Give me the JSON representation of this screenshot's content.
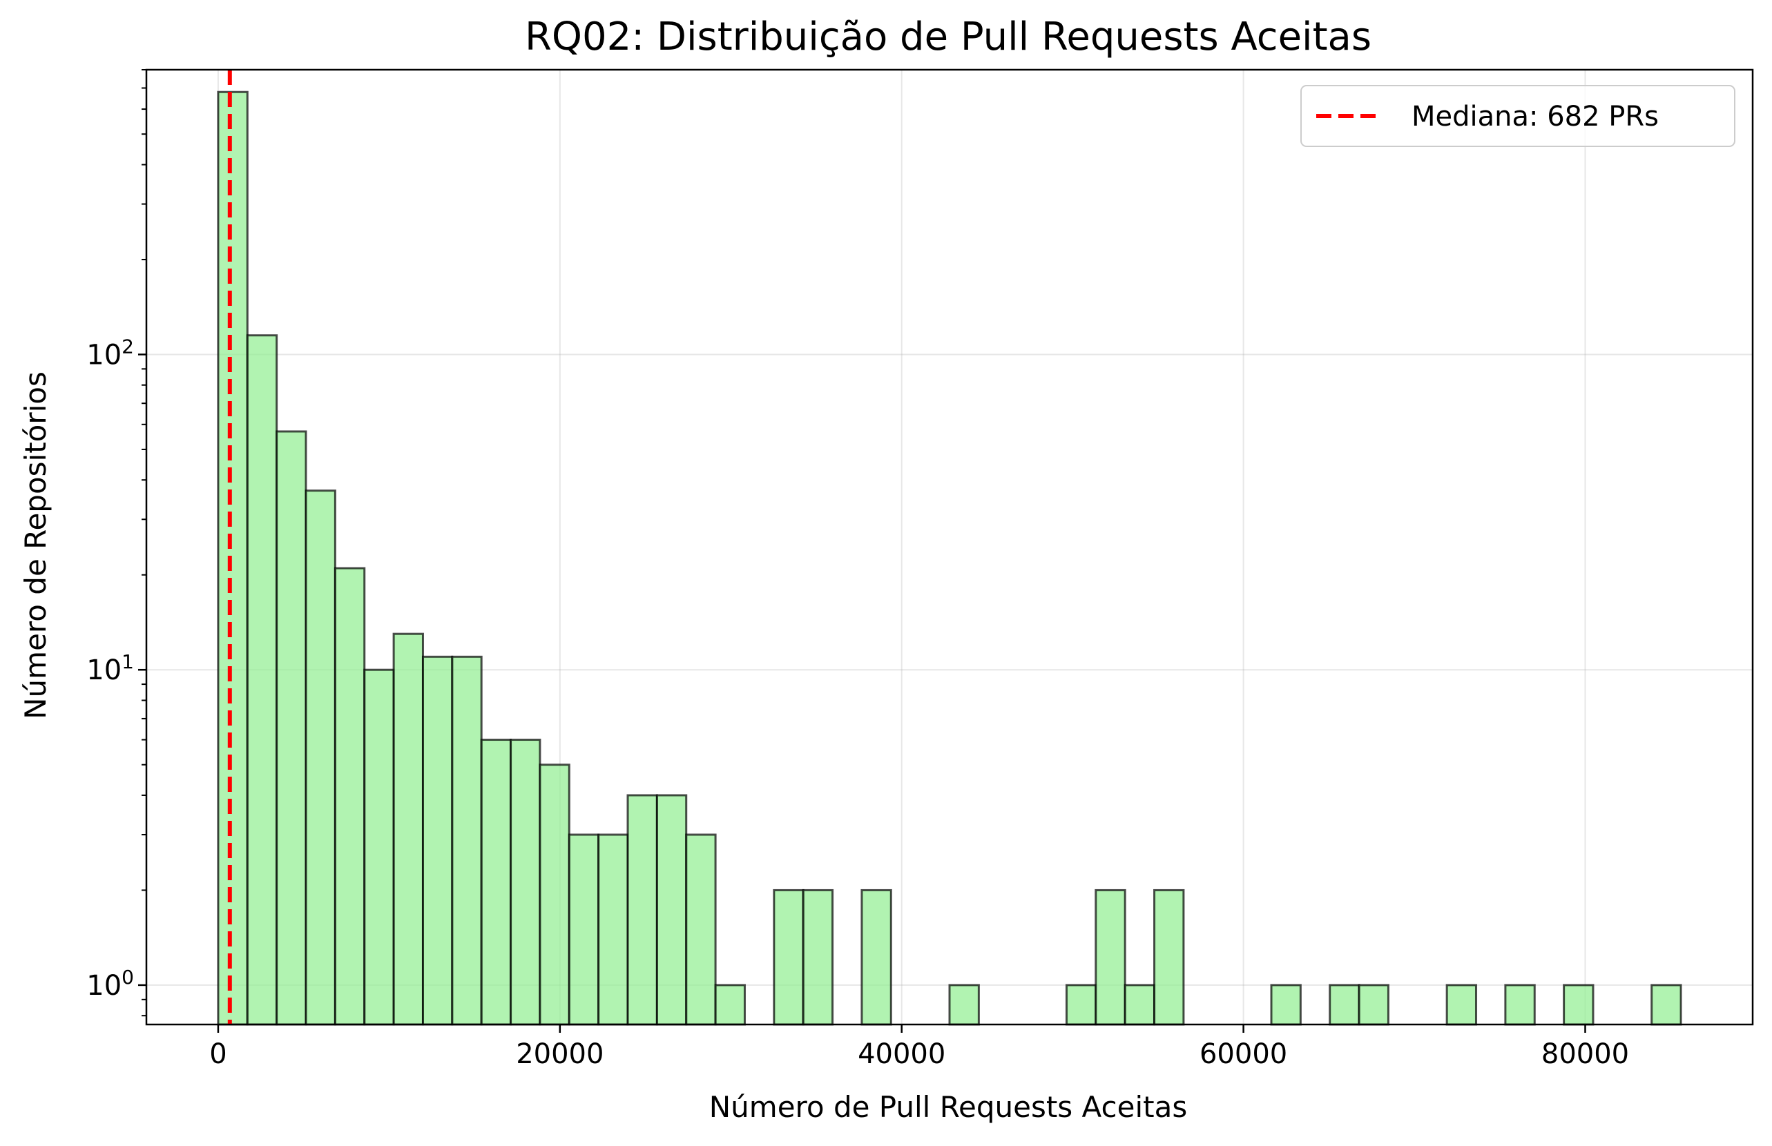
{
  "chart_data": {
    "type": "bar",
    "subtype": "histogram",
    "title": "RQ02: Distribuição de Pull Requests Aceitas",
    "xlabel": "Número de Pull Requests Aceitas",
    "ylabel": "Número de Repositórios",
    "xlim": [
      -4200,
      89800
    ],
    "ylim": [
      0.75,
      800
    ],
    "yscale": "log",
    "grid": true,
    "x_ticks": [
      {
        "value": 0,
        "label": "0"
      },
      {
        "value": 20000,
        "label": "20000"
      },
      {
        "value": 40000,
        "label": "40000"
      },
      {
        "value": 60000,
        "label": "60000"
      },
      {
        "value": 80000,
        "label": "80000"
      }
    ],
    "y_ticks": [
      {
        "value": 1,
        "base": "10",
        "exp": "0"
      },
      {
        "value": 10,
        "base": "10",
        "exp": "1"
      },
      {
        "value": 100,
        "base": "10",
        "exp": "2"
      }
    ],
    "bin_edges": [
      0,
      1712,
      3424,
      5136,
      6848,
      8560,
      10272,
      11984,
      13696,
      15408,
      17120,
      18832,
      20544,
      22256,
      23968,
      25680,
      27392,
      29104,
      30816,
      32528,
      34240,
      35952,
      37664,
      39376,
      41088,
      42800,
      44512,
      46224,
      47936,
      49648,
      51360,
      53072,
      54784,
      56496,
      58208,
      59920,
      61632,
      63344,
      65056,
      66768,
      68480,
      70192,
      71904,
      73616,
      75328,
      77040,
      78752,
      80464,
      82176,
      83888,
      85600
    ],
    "counts": [
      680,
      115,
      57,
      37,
      21,
      10,
      13,
      11,
      11,
      6,
      6,
      5,
      3,
      3,
      4,
      4,
      3,
      1,
      0,
      2,
      2,
      0,
      2,
      0,
      0,
      1,
      0,
      0,
      0,
      1,
      2,
      1,
      2,
      0,
      0,
      0,
      1,
      0,
      1,
      1,
      0,
      0,
      1,
      0,
      1,
      0,
      1,
      0,
      0,
      1
    ],
    "bar_color": "#90ee90",
    "bar_edge_color": "#000000",
    "median": {
      "value": 682,
      "color": "#ff0000",
      "label": "Mediana: 682 PRs"
    },
    "legend": {
      "position": "top-right",
      "entries": [
        "Mediana: 682 PRs"
      ]
    }
  }
}
